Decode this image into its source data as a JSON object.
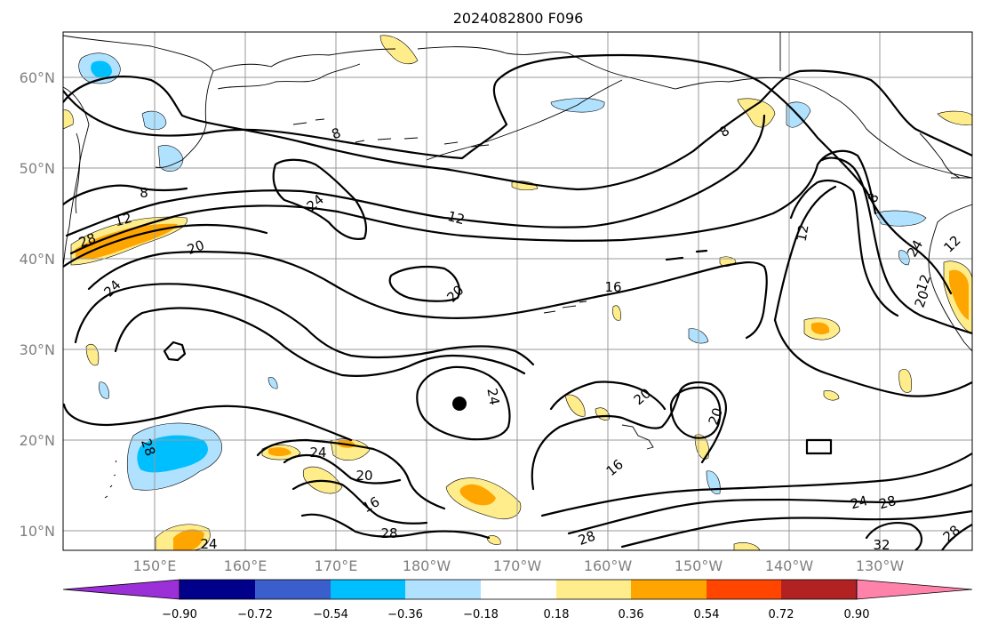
{
  "title": "2024082800 F096",
  "colors": {
    "neg_090": "#9b30d9",
    "neg_072": "#00008b",
    "neg_054": "#3a5fcd",
    "neg_036": "#00bfff",
    "neg_018": "#b0e2ff",
    "neutral": "#ffffff",
    "pos_018": "#ffec8b",
    "pos_036": "#ffa500",
    "pos_054": "#ff4500",
    "pos_072": "#b22222",
    "pos_090": "#ff82ab"
  },
  "latitude_labels": [
    "60°N",
    "50°N",
    "40°N",
    "30°N",
    "20°N",
    "10°N"
  ],
  "longitude_labels": [
    "150°E",
    "160°E",
    "170°E",
    "180°W",
    "170°W",
    "160°W",
    "150°W",
    "140°W",
    "130°W"
  ],
  "colorbar": {
    "extend": "both",
    "levels": [
      "−0.90",
      "−0.72",
      "−0.54",
      "−0.36",
      "−0.18",
      "0.18",
      "0.36",
      "0.54",
      "0.72",
      "0.90"
    ]
  },
  "contour_labels": [
    "8",
    "8",
    "8",
    "8",
    "12",
    "12",
    "12",
    "12",
    "12",
    "16",
    "16",
    "16",
    "20",
    "20",
    "20",
    "20",
    "20",
    "20",
    "24",
    "24",
    "24",
    "24",
    "24",
    "24",
    "24",
    "28",
    "28",
    "28",
    "28",
    "28",
    "28",
    "32"
  ]
}
